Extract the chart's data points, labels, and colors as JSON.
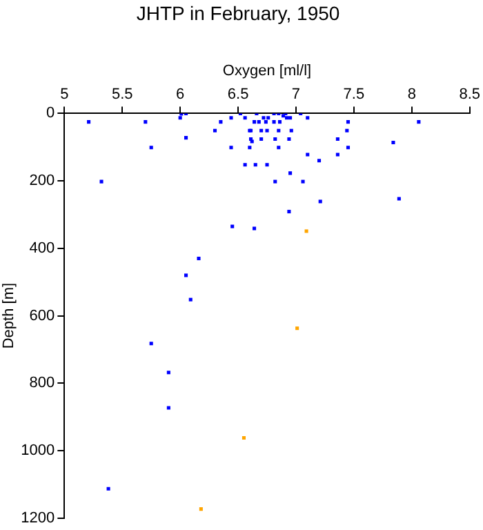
{
  "chart_data": {
    "type": "scatter",
    "title": "JHTP in February, 1950",
    "xlabel": "Oxygen [ml/l]",
    "ylabel": "Depth [m]",
    "xlim": [
      5,
      8.5
    ],
    "xticks": [
      5,
      5.5,
      6,
      6.5,
      7,
      7.5,
      8,
      8.5
    ],
    "ylim": [
      1200,
      0
    ],
    "yticks": [
      0,
      200,
      400,
      600,
      800,
      1000,
      1200
    ],
    "grid": false,
    "legend": false,
    "marker": "square",
    "series": [
      {
        "color": "#0000ff",
        "x": [
          5.21,
          5.7,
          6.0,
          6.05,
          6.01,
          6.05,
          5.75,
          6.35,
          6.3,
          6.44,
          6.52,
          6.56,
          6.66,
          6.64,
          6.68,
          6.72,
          6.76,
          6.74,
          6.81,
          6.85,
          6.81,
          6.86,
          6.89,
          6.91,
          6.92,
          6.95,
          7.04,
          7.1,
          6.6,
          6.61,
          6.7,
          6.75,
          6.85,
          6.96,
          6.61,
          6.62,
          6.7,
          6.82,
          6.94,
          6.44,
          6.6,
          6.85,
          6.56,
          6.65,
          6.75,
          6.82,
          6.95,
          7.06,
          7.1,
          7.2,
          7.36,
          7.36,
          7.45,
          7.44,
          7.45,
          7.84,
          8.06,
          7.89,
          7.21,
          6.94,
          6.45,
          6.64,
          5.32,
          6.16,
          6.05,
          6.09,
          5.75,
          5.9,
          5.9,
          5.38
        ],
        "values": [
          25,
          25,
          13,
          0,
          1,
          72,
          101,
          25,
          51,
          13,
          0,
          13,
          0,
          25,
          25,
          13,
          13,
          25,
          0,
          0,
          25,
          25,
          7,
          0,
          13,
          13,
          0,
          13,
          51,
          51,
          51,
          51,
          51,
          51,
          76,
          83,
          76,
          76,
          76,
          101,
          101,
          101,
          152,
          152,
          152,
          202,
          177,
          202,
          122,
          140,
          76,
          122,
          25,
          51,
          101,
          86,
          25,
          253,
          261,
          291,
          335,
          341,
          202,
          430,
          480,
          552,
          682,
          768,
          873,
          1113
        ]
      },
      {
        "color": "#ffa500",
        "x": [
          7.09,
          7.01,
          6.55,
          6.18
        ],
        "values": [
          349,
          637,
          962,
          1173
        ]
      }
    ]
  }
}
